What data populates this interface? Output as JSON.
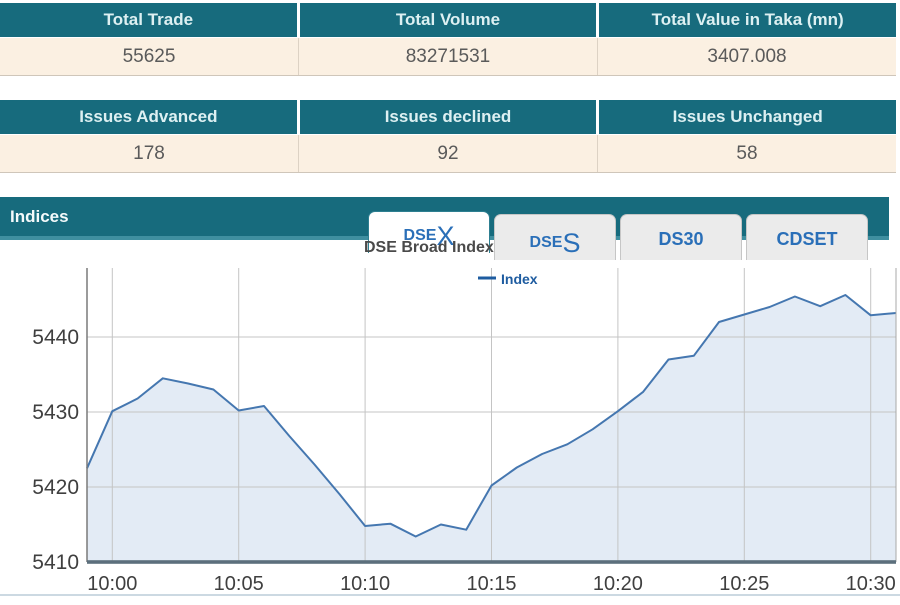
{
  "colors": {
    "teal_header": "#176b7d",
    "header_text": "#ddf0f2",
    "row_cream": "#fbf0e2",
    "value_text": "#5a5a5a",
    "tab_blue": "#2a6fb8",
    "chart_line": "#4577b0",
    "chart_fill": "#ccdaed",
    "legend_blue": "#1e5ca0",
    "underline_teal": "#3f8fa0"
  },
  "summary_table": {
    "headers": [
      "Total Trade",
      "Total Volume",
      "Total Value in Taka (mn)"
    ],
    "values": [
      "55625",
      "83271531",
      "3407.008"
    ]
  },
  "issues_table": {
    "headers": [
      "Issues Advanced",
      "Issues declined",
      "Issues Unchanged"
    ],
    "values": [
      "178",
      "92",
      "58"
    ]
  },
  "indices": {
    "title": "Indices",
    "active_tab": "DSEX",
    "tabs": [
      {
        "prefix": "DSE",
        "suffix": "X"
      },
      {
        "prefix": "DSE",
        "suffix": "S"
      },
      {
        "label": "DS30"
      },
      {
        "label": "CDSET"
      }
    ]
  },
  "chart_data": {
    "type": "area",
    "title": "DSE Broad Index",
    "xlabel": "",
    "ylabel": "",
    "legend_position": "top-center",
    "x_ticks": [
      "10:00",
      "10:05",
      "10:10",
      "10:15",
      "10:20",
      "10:25",
      "10:30"
    ],
    "y_ticks": [
      5410,
      5420,
      5430,
      5440
    ],
    "grid_y": [
      5420,
      5430,
      5440
    ],
    "ylim": [
      5410,
      5449
    ],
    "x_range": [
      "09:59",
      "10:31"
    ],
    "series": [
      {
        "name": "Index",
        "points": [
          [
            "09:59",
            5422.5
          ],
          [
            "10:00",
            5430.1
          ],
          [
            "10:01",
            5431.8
          ],
          [
            "10:02",
            5434.5
          ],
          [
            "10:03",
            5433.8
          ],
          [
            "10:04",
            5433.0
          ],
          [
            "10:05",
            5430.2
          ],
          [
            "10:06",
            5430.8
          ],
          [
            "10:07",
            5426.8
          ],
          [
            "10:08",
            5423.0
          ],
          [
            "10:09",
            5419.0
          ],
          [
            "10:10",
            5414.8
          ],
          [
            "10:11",
            5415.1
          ],
          [
            "10:12",
            5413.4
          ],
          [
            "10:13",
            5415.0
          ],
          [
            "10:14",
            5414.3
          ],
          [
            "10:15",
            5420.2
          ],
          [
            "10:16",
            5422.6
          ],
          [
            "10:17",
            5424.4
          ],
          [
            "10:18",
            5425.7
          ],
          [
            "10:19",
            5427.7
          ],
          [
            "10:20",
            5430.1
          ],
          [
            "10:21",
            5432.7
          ],
          [
            "10:22",
            5437.0
          ],
          [
            "10:23",
            5437.5
          ],
          [
            "10:24",
            5442.0
          ],
          [
            "10:25",
            5443.0
          ],
          [
            "10:26",
            5444.0
          ],
          [
            "10:27",
            5445.4
          ],
          [
            "10:28",
            5444.1
          ],
          [
            "10:29",
            5445.6
          ],
          [
            "10:30",
            5442.9
          ],
          [
            "10:31",
            5443.2
          ]
        ]
      }
    ]
  }
}
